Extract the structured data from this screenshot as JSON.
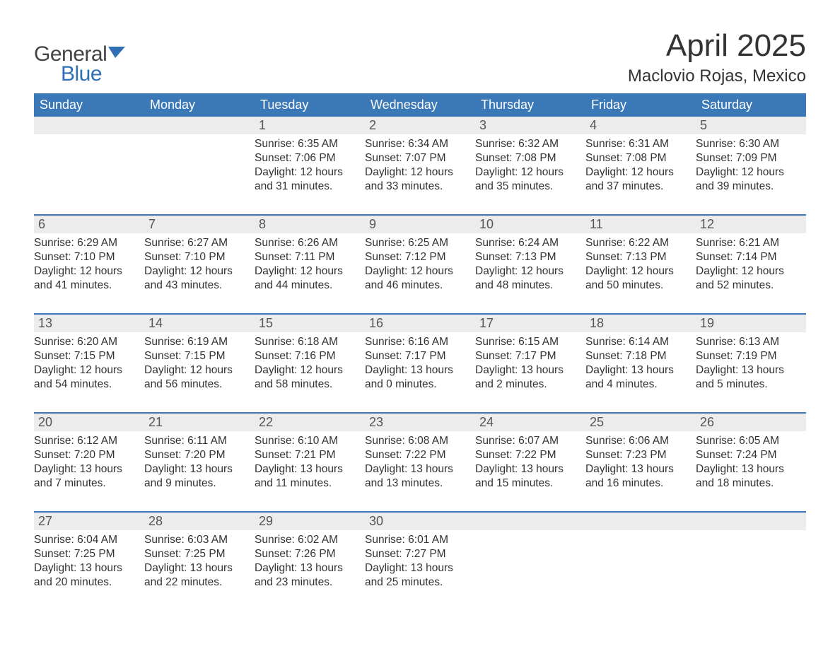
{
  "logo": {
    "word1": "General",
    "word2": "Blue",
    "brand_color": "#2f6fb2",
    "text_color": "#444"
  },
  "title": "April 2025",
  "location": "Maclovio Rojas, Mexico",
  "colors": {
    "header_bg": "#3a78b8",
    "header_text": "#ffffff",
    "strip_bg": "#ececec",
    "week_border": "#3a78b8",
    "body_text": "#333333"
  },
  "typography": {
    "title_size": 44,
    "location_size": 24,
    "weekday_size": 18,
    "body_size": 15.5
  },
  "weekdays": [
    "Sunday",
    "Monday",
    "Tuesday",
    "Wednesday",
    "Thursday",
    "Friday",
    "Saturday"
  ],
  "weeks": [
    [
      {
        "n": "",
        "sr": "",
        "ss": "",
        "dl": ""
      },
      {
        "n": "",
        "sr": "",
        "ss": "",
        "dl": ""
      },
      {
        "n": "1",
        "sr": "Sunrise: 6:35 AM",
        "ss": "Sunset: 7:06 PM",
        "dl": "Daylight: 12 hours and 31 minutes."
      },
      {
        "n": "2",
        "sr": "Sunrise: 6:34 AM",
        "ss": "Sunset: 7:07 PM",
        "dl": "Daylight: 12 hours and 33 minutes."
      },
      {
        "n": "3",
        "sr": "Sunrise: 6:32 AM",
        "ss": "Sunset: 7:08 PM",
        "dl": "Daylight: 12 hours and 35 minutes."
      },
      {
        "n": "4",
        "sr": "Sunrise: 6:31 AM",
        "ss": "Sunset: 7:08 PM",
        "dl": "Daylight: 12 hours and 37 minutes."
      },
      {
        "n": "5",
        "sr": "Sunrise: 6:30 AM",
        "ss": "Sunset: 7:09 PM",
        "dl": "Daylight: 12 hours and 39 minutes."
      }
    ],
    [
      {
        "n": "6",
        "sr": "Sunrise: 6:29 AM",
        "ss": "Sunset: 7:10 PM",
        "dl": "Daylight: 12 hours and 41 minutes."
      },
      {
        "n": "7",
        "sr": "Sunrise: 6:27 AM",
        "ss": "Sunset: 7:10 PM",
        "dl": "Daylight: 12 hours and 43 minutes."
      },
      {
        "n": "8",
        "sr": "Sunrise: 6:26 AM",
        "ss": "Sunset: 7:11 PM",
        "dl": "Daylight: 12 hours and 44 minutes."
      },
      {
        "n": "9",
        "sr": "Sunrise: 6:25 AM",
        "ss": "Sunset: 7:12 PM",
        "dl": "Daylight: 12 hours and 46 minutes."
      },
      {
        "n": "10",
        "sr": "Sunrise: 6:24 AM",
        "ss": "Sunset: 7:13 PM",
        "dl": "Daylight: 12 hours and 48 minutes."
      },
      {
        "n": "11",
        "sr": "Sunrise: 6:22 AM",
        "ss": "Sunset: 7:13 PM",
        "dl": "Daylight: 12 hours and 50 minutes."
      },
      {
        "n": "12",
        "sr": "Sunrise: 6:21 AM",
        "ss": "Sunset: 7:14 PM",
        "dl": "Daylight: 12 hours and 52 minutes."
      }
    ],
    [
      {
        "n": "13",
        "sr": "Sunrise: 6:20 AM",
        "ss": "Sunset: 7:15 PM",
        "dl": "Daylight: 12 hours and 54 minutes."
      },
      {
        "n": "14",
        "sr": "Sunrise: 6:19 AM",
        "ss": "Sunset: 7:15 PM",
        "dl": "Daylight: 12 hours and 56 minutes."
      },
      {
        "n": "15",
        "sr": "Sunrise: 6:18 AM",
        "ss": "Sunset: 7:16 PM",
        "dl": "Daylight: 12 hours and 58 minutes."
      },
      {
        "n": "16",
        "sr": "Sunrise: 6:16 AM",
        "ss": "Sunset: 7:17 PM",
        "dl": "Daylight: 13 hours and 0 minutes."
      },
      {
        "n": "17",
        "sr": "Sunrise: 6:15 AM",
        "ss": "Sunset: 7:17 PM",
        "dl": "Daylight: 13 hours and 2 minutes."
      },
      {
        "n": "18",
        "sr": "Sunrise: 6:14 AM",
        "ss": "Sunset: 7:18 PM",
        "dl": "Daylight: 13 hours and 4 minutes."
      },
      {
        "n": "19",
        "sr": "Sunrise: 6:13 AM",
        "ss": "Sunset: 7:19 PM",
        "dl": "Daylight: 13 hours and 5 minutes."
      }
    ],
    [
      {
        "n": "20",
        "sr": "Sunrise: 6:12 AM",
        "ss": "Sunset: 7:20 PM",
        "dl": "Daylight: 13 hours and 7 minutes."
      },
      {
        "n": "21",
        "sr": "Sunrise: 6:11 AM",
        "ss": "Sunset: 7:20 PM",
        "dl": "Daylight: 13 hours and 9 minutes."
      },
      {
        "n": "22",
        "sr": "Sunrise: 6:10 AM",
        "ss": "Sunset: 7:21 PM",
        "dl": "Daylight: 13 hours and 11 minutes."
      },
      {
        "n": "23",
        "sr": "Sunrise: 6:08 AM",
        "ss": "Sunset: 7:22 PM",
        "dl": "Daylight: 13 hours and 13 minutes."
      },
      {
        "n": "24",
        "sr": "Sunrise: 6:07 AM",
        "ss": "Sunset: 7:22 PM",
        "dl": "Daylight: 13 hours and 15 minutes."
      },
      {
        "n": "25",
        "sr": "Sunrise: 6:06 AM",
        "ss": "Sunset: 7:23 PM",
        "dl": "Daylight: 13 hours and 16 minutes."
      },
      {
        "n": "26",
        "sr": "Sunrise: 6:05 AM",
        "ss": "Sunset: 7:24 PM",
        "dl": "Daylight: 13 hours and 18 minutes."
      }
    ],
    [
      {
        "n": "27",
        "sr": "Sunrise: 6:04 AM",
        "ss": "Sunset: 7:25 PM",
        "dl": "Daylight: 13 hours and 20 minutes."
      },
      {
        "n": "28",
        "sr": "Sunrise: 6:03 AM",
        "ss": "Sunset: 7:25 PM",
        "dl": "Daylight: 13 hours and 22 minutes."
      },
      {
        "n": "29",
        "sr": "Sunrise: 6:02 AM",
        "ss": "Sunset: 7:26 PM",
        "dl": "Daylight: 13 hours and 23 minutes."
      },
      {
        "n": "30",
        "sr": "Sunrise: 6:01 AM",
        "ss": "Sunset: 7:27 PM",
        "dl": "Daylight: 13 hours and 25 minutes."
      },
      {
        "n": "",
        "sr": "",
        "ss": "",
        "dl": ""
      },
      {
        "n": "",
        "sr": "",
        "ss": "",
        "dl": ""
      },
      {
        "n": "",
        "sr": "",
        "ss": "",
        "dl": ""
      }
    ]
  ]
}
